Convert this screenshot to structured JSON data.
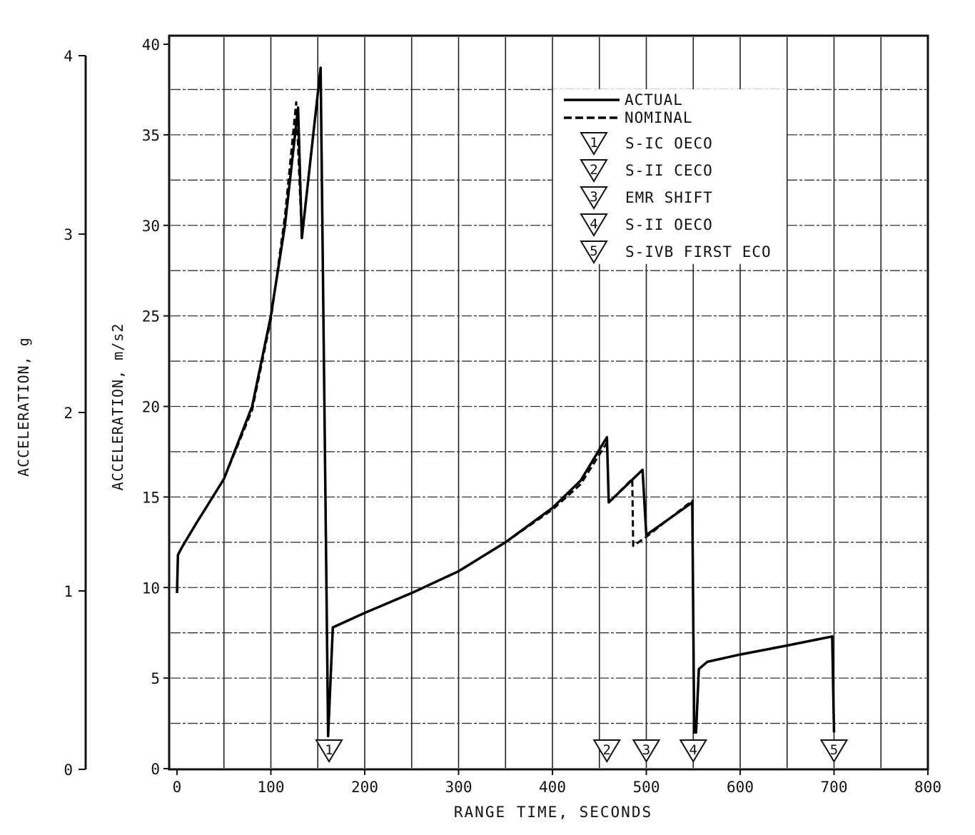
{
  "chart_data": {
    "type": "line",
    "title": "",
    "xlabel": "RANGE TIME, SECONDS",
    "ylabel": "ACCELERATION, m/s2",
    "ylabel_secondary": "ACCELERATION, g",
    "xlim": [
      0,
      800
    ],
    "ylim": [
      0,
      40
    ],
    "ylim_secondary": [
      0,
      4
    ],
    "xticks": [
      "0",
      "100",
      "200",
      "300",
      "400",
      "500",
      "600",
      "700",
      "800"
    ],
    "yticks": [
      "0",
      "5",
      "10",
      "15",
      "20",
      "25",
      "30",
      "35",
      "40"
    ],
    "yticks_secondary": [
      "0",
      "1",
      "2",
      "3",
      "4"
    ],
    "grid": true,
    "legend_placement": "top-right",
    "series": [
      {
        "name": "ACTUAL",
        "style": "solid",
        "x": [
          0,
          1,
          5,
          20,
          50,
          80,
          100,
          115,
          129,
          133,
          153,
          161,
          166,
          200,
          250,
          300,
          350,
          400,
          430,
          458,
          460,
          496,
          500,
          549,
          551,
          553,
          556,
          565,
          600,
          650,
          698,
          700
        ],
        "y": [
          9.7,
          11.8,
          12.2,
          13.5,
          16.0,
          20.0,
          25.0,
          30.0,
          36.5,
          29.3,
          38.7,
          1.8,
          7.8,
          8.6,
          9.7,
          10.9,
          12.5,
          14.4,
          15.9,
          18.3,
          14.7,
          16.5,
          12.9,
          14.7,
          2.0,
          2.0,
          5.5,
          5.9,
          6.3,
          6.8,
          7.3,
          2.0
        ]
      },
      {
        "name": "NOMINAL",
        "style": "dashed",
        "x": [
          0,
          1,
          5,
          20,
          50,
          80,
          100,
          115,
          127,
          133,
          153,
          161,
          166,
          200,
          250,
          300,
          350,
          400,
          430,
          458,
          460,
          485,
          486,
          500,
          549,
          551,
          553,
          556
        ],
        "y": [
          9.7,
          11.8,
          12.2,
          13.5,
          16.0,
          19.8,
          24.8,
          30.5,
          36.8,
          29.3,
          38.7,
          1.8,
          7.8,
          8.6,
          9.7,
          10.9,
          12.5,
          14.3,
          15.7,
          18.0,
          14.7,
          16.0,
          12.3,
          12.8,
          14.8,
          2.0,
          2.0,
          5.5
        ]
      }
    ],
    "events": [
      {
        "id": "1",
        "x": 162,
        "label": "S-IC OECO"
      },
      {
        "id": "2",
        "x": 458,
        "label": "S-II CECO"
      },
      {
        "id": "3",
        "x": 500,
        "label": "EMR SHIFT"
      },
      {
        "id": "4",
        "x": 550,
        "label": "S-II OECO"
      },
      {
        "id": "5",
        "x": 700,
        "label": "S-IVB FIRST ECO"
      }
    ]
  }
}
